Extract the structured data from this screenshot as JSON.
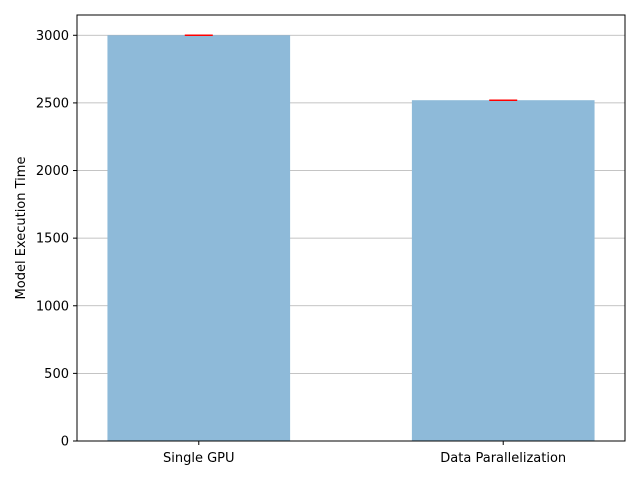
{
  "chart_data": {
    "type": "bar",
    "categories": [
      "Single GPU",
      "Data Parallelization"
    ],
    "values": [
      3000,
      2520
    ],
    "errors": [
      5,
      5
    ],
    "title": "",
    "xlabel": "",
    "ylabel": "Model Execution Time",
    "ylim": [
      0,
      3150
    ],
    "yticks": [
      0,
      500,
      1000,
      1500,
      2000,
      2500,
      3000
    ],
    "grid": "y-major",
    "legend": "none",
    "bar_color": "#8ebad9",
    "error_color": "#ff0000",
    "grid_color": "#b0b0b0"
  }
}
